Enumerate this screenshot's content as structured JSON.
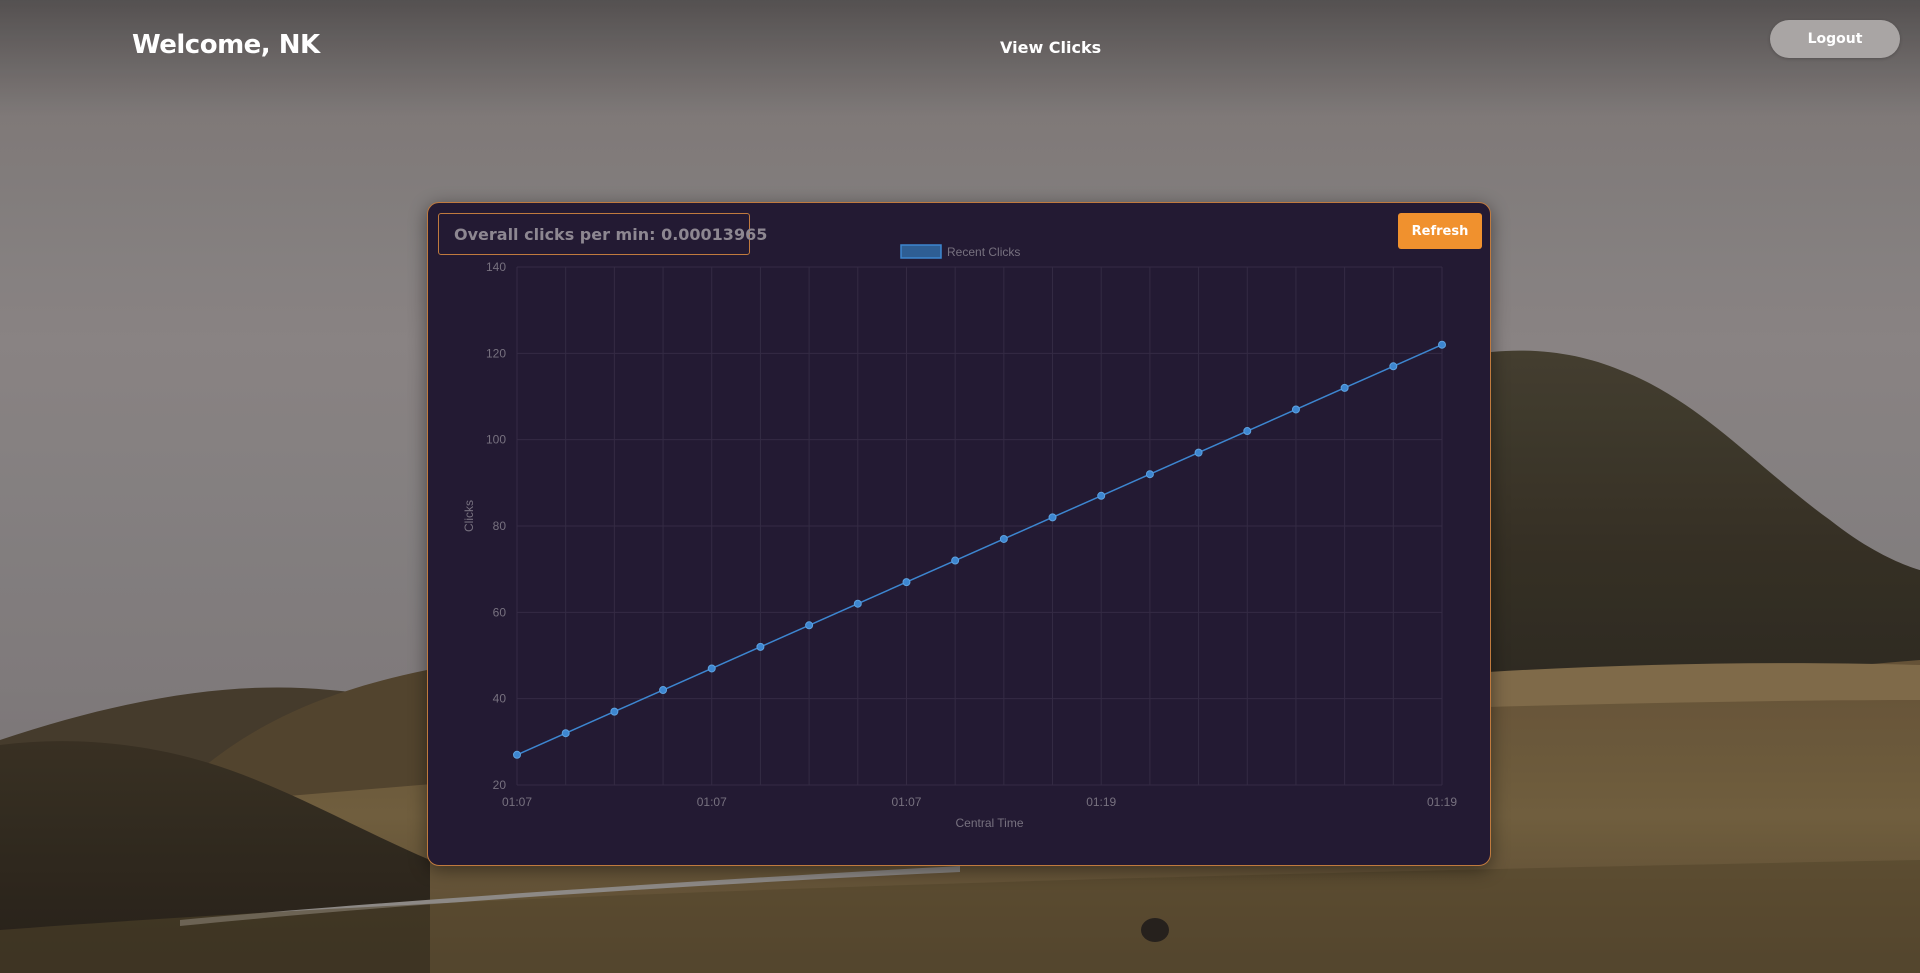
{
  "header": {
    "welcome_text": "Welcome, NK",
    "nav_link": "View Clicks",
    "logout_label": "Logout"
  },
  "panel": {
    "stat_text": "Overall clicks per min: 0.00013965",
    "refresh_label": "Refresh"
  },
  "colors": {
    "accent": "#f0912e",
    "panel_bg": "#231a33",
    "panel_border": "#c07a3e",
    "series": "#3d86d0"
  },
  "chart_data": {
    "type": "line",
    "title": "",
    "xlabel": "Central Time",
    "ylabel": "Clicks",
    "ylim": [
      20,
      140
    ],
    "yticks": [
      20,
      40,
      60,
      80,
      100,
      120,
      140
    ],
    "x_tick_labels": [
      {
        "index": 0,
        "label": "01:07"
      },
      {
        "index": 4,
        "label": "01:07"
      },
      {
        "index": 8,
        "label": "01:07"
      },
      {
        "index": 12,
        "label": "01:19"
      },
      {
        "index": 19,
        "label": "01:19"
      }
    ],
    "grid": true,
    "legend": "top-center",
    "series": [
      {
        "name": "Recent Clicks",
        "values": [
          27,
          32,
          37,
          42,
          47,
          52,
          57,
          62,
          67,
          72,
          77,
          82,
          87,
          92,
          97,
          102,
          107,
          112,
          117,
          122
        ]
      }
    ]
  }
}
